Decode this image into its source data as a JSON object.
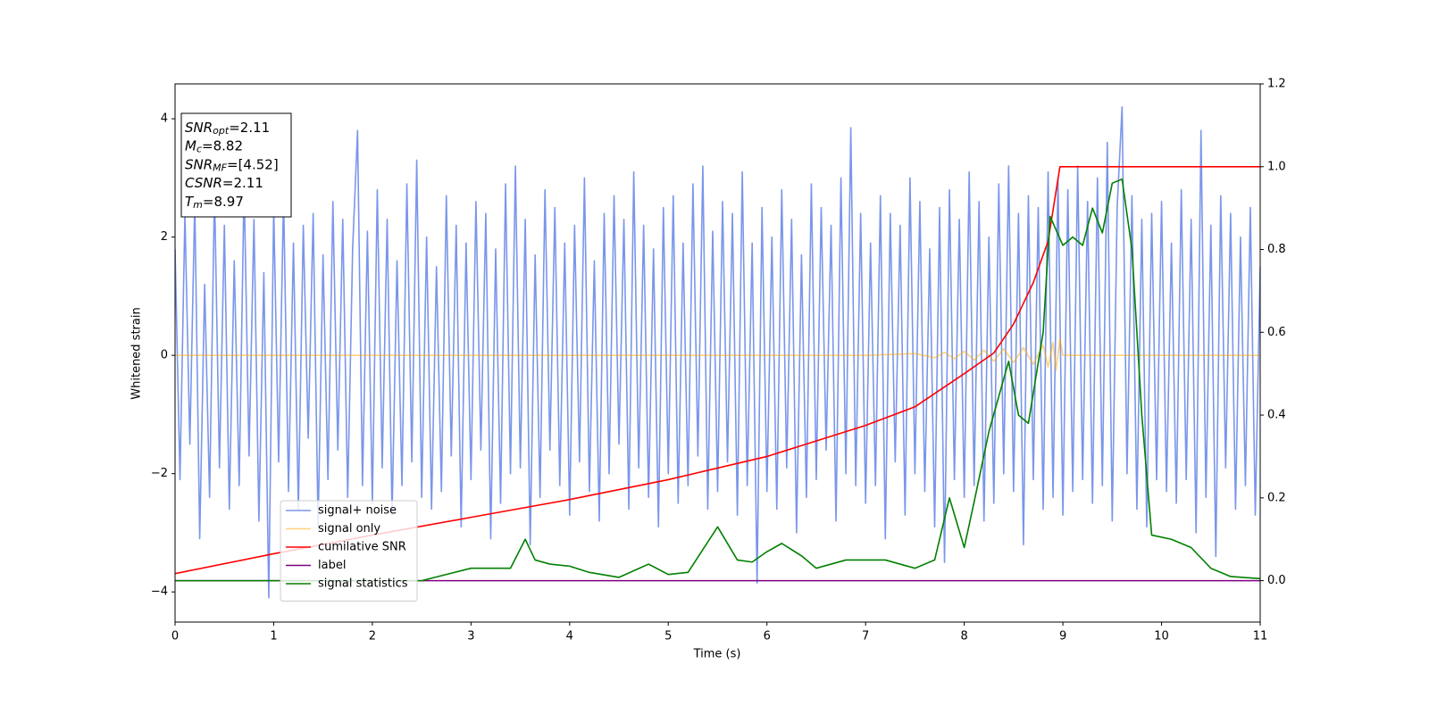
{
  "chart_data": {
    "type": "line",
    "xlabel": "Time (s)",
    "ylabel": "Whitened strain",
    "xlim": [
      0,
      11
    ],
    "xticks": [
      0,
      1,
      2,
      3,
      4,
      5,
      6,
      7,
      8,
      9,
      10,
      11
    ],
    "ylim": [
      -4.51,
      4.59
    ],
    "yticks": [
      {
        "value": -4,
        "label": "−4"
      },
      {
        "value": -2,
        "label": "−2"
      },
      0,
      2,
      4
    ],
    "y2lim": [
      -0.1,
      1.2
    ],
    "y2ticks": [
      {
        "value": 0,
        "label": "0.0"
      },
      0.2,
      0.4,
      0.6,
      0.8,
      {
        "value": 1,
        "label": "1.0"
      },
      1.2
    ],
    "legend_loc": "lower left",
    "annotation": {
      "lines": [
        {
          "base": "SNR",
          "sub": "opt",
          "text": "=2.11"
        },
        {
          "base": "M",
          "sub": "c",
          "text": "=8.82"
        },
        {
          "base": "SNR",
          "sub": "MF",
          "text": "=[4.52]"
        },
        {
          "base": "CSNR",
          "sub": "",
          "text": "=2.11"
        },
        {
          "base": "T",
          "sub": "m",
          "text": "=8.97"
        }
      ]
    },
    "series": [
      {
        "name": "signal+ noise",
        "color": "#4169e1",
        "alpha": 0.7,
        "x": [
          0,
          0.05,
          0.1,
          0.15,
          0.2,
          0.25,
          0.3,
          0.35,
          0.4,
          0.45,
          0.5,
          0.55,
          0.6,
          0.65,
          0.7,
          0.75,
          0.8,
          0.85,
          0.9,
          0.95,
          1,
          1.05,
          1.1,
          1.15,
          1.2,
          1.25,
          1.3,
          1.35,
          1.4,
          1.45,
          1.5,
          1.55,
          1.6,
          1.65,
          1.7,
          1.75,
          1.8,
          1.85,
          1.9,
          1.95,
          2,
          2.05,
          2.1,
          2.15,
          2.2,
          2.25,
          2.3,
          2.35,
          2.4,
          2.45,
          2.5,
          2.55,
          2.6,
          2.65,
          2.7,
          2.75,
          2.8,
          2.85,
          2.9,
          2.95,
          3,
          3.05,
          3.1,
          3.15,
          3.2,
          3.25,
          3.3,
          3.35,
          3.4,
          3.45,
          3.5,
          3.55,
          3.6,
          3.65,
          3.7,
          3.75,
          3.8,
          3.85,
          3.9,
          3.95,
          4,
          4.05,
          4.1,
          4.15,
          4.2,
          4.25,
          4.3,
          4.35,
          4.4,
          4.45,
          4.5,
          4.55,
          4.6,
          4.65,
          4.7,
          4.75,
          4.8,
          4.85,
          4.9,
          4.95,
          5,
          5.05,
          5.1,
          5.15,
          5.2,
          5.25,
          5.3,
          5.35,
          5.4,
          5.45,
          5.5,
          5.55,
          5.6,
          5.65,
          5.7,
          5.75,
          5.8,
          5.85,
          5.9,
          5.95,
          6,
          6.05,
          6.1,
          6.15,
          6.2,
          6.25,
          6.3,
          6.35,
          6.4,
          6.45,
          6.5,
          6.55,
          6.6,
          6.65,
          6.7,
          6.75,
          6.8,
          6.85,
          6.9,
          6.95,
          7,
          7.05,
          7.1,
          7.15,
          7.2,
          7.25,
          7.3,
          7.35,
          7.4,
          7.45,
          7.5,
          7.55,
          7.6,
          7.65,
          7.7,
          7.75,
          7.8,
          7.85,
          7.9,
          7.95,
          8,
          8.05,
          8.1,
          8.15,
          8.2,
          8.25,
          8.3,
          8.35,
          8.4,
          8.45,
          8.5,
          8.55,
          8.6,
          8.65,
          8.7,
          8.75,
          8.8,
          8.85,
          8.9,
          8.95,
          9,
          9.05,
          9.1,
          9.15,
          9.2,
          9.25,
          9.3,
          9.35,
          9.4,
          9.45,
          9.5,
          9.55,
          9.6,
          9.65,
          9.7,
          9.75,
          9.8,
          9.85,
          9.9,
          9.95,
          10,
          10.05,
          10.1,
          10.15,
          10.2,
          10.25,
          10.3,
          10.35,
          10.4,
          10.45,
          10.5,
          10.55,
          10.6,
          10.65,
          10.7,
          10.75,
          10.8,
          10.85,
          10.9,
          10.95,
          11
        ],
        "values": [
          1.8,
          -2.1,
          2.4,
          -1.5,
          2.6,
          -3.1,
          1.2,
          -2.4,
          2.8,
          -1.9,
          2.2,
          -2.6,
          1.6,
          -2.2,
          2.9,
          -1.7,
          2.3,
          -2.8,
          1.4,
          -4.1,
          2.5,
          -1.8,
          2.7,
          -2.3,
          1.9,
          -2.6,
          2.2,
          -1.4,
          2.4,
          -2.9,
          1.7,
          -2.1,
          2.6,
          -1.6,
          2.3,
          -2.4,
          1.8,
          3.8,
          -2.2,
          2.1,
          -2.5,
          2.8,
          -1.9,
          2.3,
          -2.7,
          1.6,
          -2.2,
          2.9,
          -1.8,
          3.3,
          -2.4,
          2.0,
          -2.6,
          1.5,
          -2.3,
          2.7,
          -1.7,
          2.2,
          -2.9,
          1.9,
          -2.1,
          2.6,
          -1.6,
          2.4,
          -3.1,
          1.8,
          -2.5,
          2.9,
          -2.0,
          3.2,
          -1.9,
          2.3,
          -3.2,
          1.7,
          -2.4,
          2.8,
          -1.6,
          2.5,
          -2.2,
          1.9,
          -2.7,
          2.2,
          -1.8,
          3.0,
          -2.3,
          1.6,
          -2.8,
          2.4,
          -2.0,
          2.7,
          -1.5,
          2.3,
          -2.6,
          3.1,
          -1.9,
          2.2,
          -2.4,
          1.8,
          -2.9,
          2.5,
          -2.0,
          2.7,
          -2.5,
          1.9,
          -2.2,
          2.9,
          -1.7,
          3.2,
          -2.6,
          2.1,
          -2.3,
          2.6,
          -1.8,
          2.4,
          -2.7,
          3.1,
          -2.2,
          1.9,
          -3.85,
          2.5,
          -2.3,
          2.0,
          -2.6,
          2.8,
          -1.9,
          2.3,
          -3.0,
          1.7,
          -2.4,
          2.9,
          -2.1,
          2.5,
          -1.6,
          2.2,
          -2.8,
          3.0,
          -2.0,
          3.85,
          -2.2,
          2.4,
          -2.5,
          1.9,
          -2.2,
          2.7,
          -3.1,
          2.4,
          -1.8,
          2.2,
          -2.7,
          3.0,
          -2.0,
          2.6,
          -2.3,
          1.8,
          -2.9,
          2.5,
          -3.5,
          2.8,
          -2.1,
          2.3,
          -2.4,
          3.1,
          -2.2,
          2.6,
          -2.8,
          2.0,
          -2.5,
          2.9,
          -2.0,
          3.2,
          -2.3,
          2.4,
          -3.2,
          2.7,
          -2.1,
          2.5,
          -2.6,
          3.1,
          -2.4,
          3.0,
          -2.7,
          2.8,
          -2.3,
          3.2,
          -2.1,
          2.6,
          -2.5,
          3.0,
          -2.2,
          3.6,
          -2.8,
          2.5,
          4.2,
          -2.0,
          2.7,
          -2.6,
          2.3,
          -2.9,
          2.4,
          -2.1,
          2.6,
          -2.3,
          1.9,
          -2.5,
          2.8,
          -2.1,
          2.3,
          -3.0,
          3.8,
          -2.4,
          2.2,
          -3.4,
          2.7,
          -1.9,
          2.4,
          -2.6,
          2.0,
          -2.2,
          2.5,
          -2.7,
          1.5
        ]
      },
      {
        "name": "signal only",
        "color": "#ffa500",
        "alpha": 0.5,
        "x": [
          0,
          7.0,
          7.5,
          7.7,
          7.8,
          7.9,
          8.0,
          8.1,
          8.2,
          8.3,
          8.4,
          8.5,
          8.6,
          8.7,
          8.8,
          8.85,
          8.9,
          8.93,
          8.97,
          9.0,
          11
        ],
        "values": [
          0,
          0,
          0.03,
          -0.04,
          0.05,
          -0.06,
          0.07,
          -0.08,
          0.09,
          -0.1,
          0.11,
          -0.12,
          0.13,
          -0.15,
          0.17,
          -0.2,
          0.22,
          -0.25,
          0.28,
          0,
          0
        ]
      },
      {
        "name": "cumilative SNR",
        "color": "#ff0000",
        "alpha": 1,
        "axis": "y2",
        "x": [
          0,
          1,
          2,
          3,
          4,
          5,
          6,
          7,
          7.5,
          8,
          8.3,
          8.5,
          8.7,
          8.85,
          8.97,
          11
        ],
        "values": [
          0.017,
          0.065,
          0.11,
          0.153,
          0.196,
          0.244,
          0.3,
          0.375,
          0.42,
          0.5,
          0.55,
          0.62,
          0.72,
          0.82,
          1.0,
          1.0
        ]
      },
      {
        "name": "label",
        "color": "#800080",
        "alpha": 1,
        "axis": "y2",
        "x": [
          0,
          11
        ],
        "values": [
          0,
          0
        ]
      },
      {
        "name": "signal statistics",
        "color": "#008000",
        "alpha": 1,
        "axis": "y2",
        "x": [
          0,
          1,
          2.5,
          3,
          3.4,
          3.55,
          3.65,
          3.8,
          4,
          4.2,
          4.5,
          4.8,
          5,
          5.2,
          5.5,
          5.7,
          5.85,
          6,
          6.15,
          6.35,
          6.5,
          6.8,
          7,
          7.2,
          7.5,
          7.7,
          7.85,
          8.0,
          8.1,
          8.25,
          8.45,
          8.55,
          8.65,
          8.8,
          8.87,
          9.0,
          9.1,
          9.2,
          9.3,
          9.4,
          9.5,
          9.6,
          9.7,
          9.8,
          9.9,
          10.1,
          10.3,
          10.5,
          10.7,
          11
        ],
        "values": [
          0.0,
          0.0,
          0.0,
          0.03,
          0.03,
          0.1,
          0.05,
          0.04,
          0.035,
          0.02,
          0.008,
          0.04,
          0.015,
          0.02,
          0.13,
          0.05,
          0.045,
          0.07,
          0.09,
          0.06,
          0.03,
          0.05,
          0.05,
          0.05,
          0.03,
          0.05,
          0.2,
          0.08,
          0.19,
          0.36,
          0.53,
          0.4,
          0.38,
          0.6,
          0.88,
          0.81,
          0.83,
          0.81,
          0.9,
          0.84,
          0.96,
          0.97,
          0.8,
          0.4,
          0.11,
          0.1,
          0.08,
          0.03,
          0.01,
          0.005
        ]
      }
    ]
  }
}
